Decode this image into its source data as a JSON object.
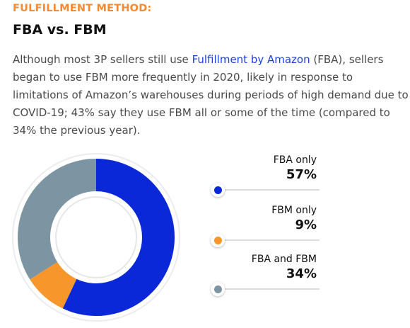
{
  "header": {
    "eyebrow": "FULFILLMENT METHOD:",
    "title": "FBA vs. FBM"
  },
  "body": {
    "text_before": "Although most 3P sellers still use ",
    "link": "Fulfillment by Amazon",
    "text_after": " (FBA), sellers began to use FBM more frequently in 2020, likely in response to limitations of Amazon’s warehouses during periods of high demand due to COVID-19; 43% say they use FBM all or some of the time (compared to 34% the previous year).",
    "link_color": "#1e3fd8"
  },
  "chart_data": {
    "type": "pie",
    "variant": "donut",
    "categories": [
      "FBA only",
      "FBM only",
      "FBA and FBM"
    ],
    "values": [
      57,
      9,
      34
    ],
    "labels": [
      "57%",
      "9%",
      "34%"
    ],
    "colors": [
      "#0a28d8",
      "#f7962a",
      "#7d95a3"
    ],
    "legend_position": "right"
  }
}
